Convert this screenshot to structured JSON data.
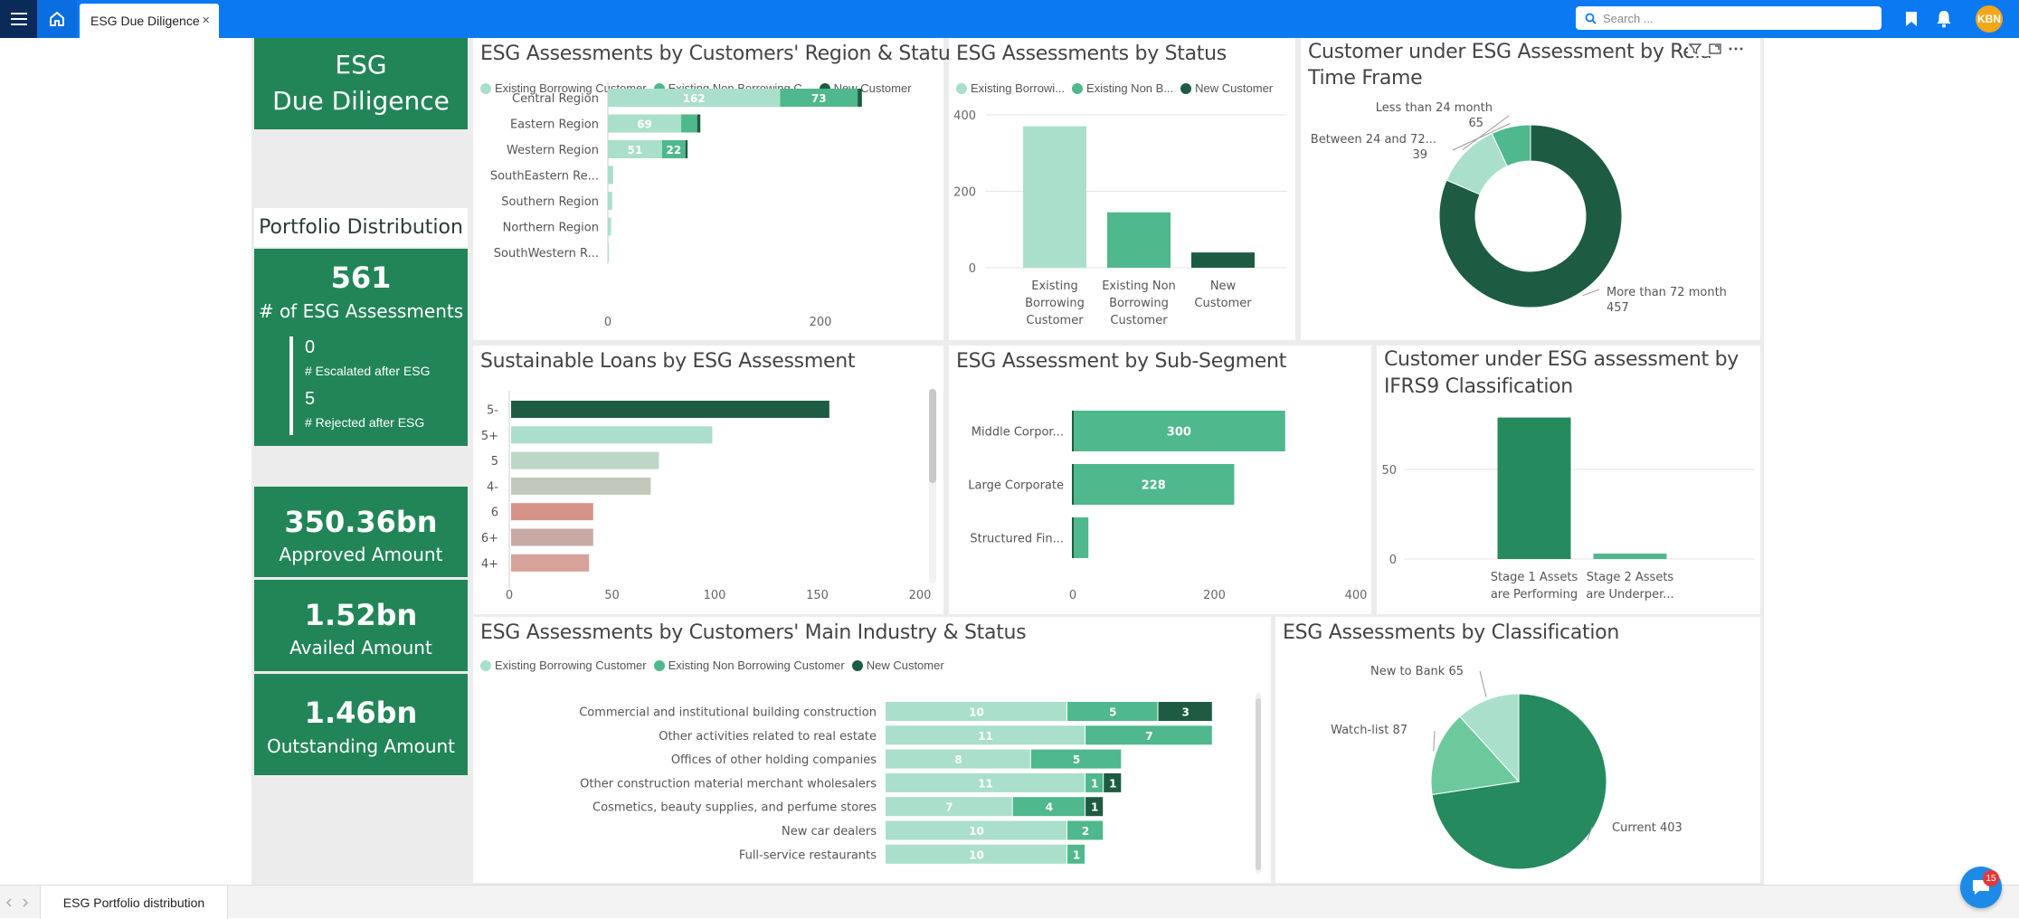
{
  "topbar": {
    "tab_label": "ESG Due Diligence",
    "tab_close": "×",
    "search_placeholder": "Search ...",
    "avatar_initials": "KBN"
  },
  "sidebar": {
    "title_line1": "ESG",
    "title_line2": "Due Diligence",
    "portfolio_heading": "Portfolio Distribution",
    "assessments_count": "561",
    "assessments_label": "# of  ESG Assessments",
    "escalated_count": "0",
    "escalated_label": "# Escalated after ESG",
    "rejected_count": "5",
    "rejected_label": "# Rejected after ESG",
    "approved_amount": "350.36bn",
    "approved_label": "Approved Amount",
    "availed_amount": "1.52bn",
    "availed_label": "Availed Amount",
    "outstanding_amount": "1.46bn",
    "outstanding_label": "Outstanding Amount"
  },
  "legend3": {
    "existing_borrowing": "Existing Borrowing Customer",
    "existing_non_borrowing": "Existing Non Borrowing Customer",
    "existing_non_borrowing_short": "Existing Non Borrowing C...",
    "new_customer": "New Customer",
    "existing_borrowing_trunc": "Existing Borrowi...",
    "existing_non_borrowing_trunc": "Existing Non B..."
  },
  "colors": {
    "light": "#a9dfcb",
    "mid": "#4fb88d",
    "dark": "#1d5c43",
    "kpi_green": "#228558",
    "brand_blue": "#0b79f2"
  },
  "bottombar": {
    "page_tab": "ESG Portfolio distribution",
    "chat_badge": "15"
  },
  "chart_data": [
    {
      "id": "region_status",
      "type": "bar",
      "orientation": "horizontal-stacked",
      "title": "ESG Assessments by Customers' Region & Status",
      "categories": [
        "Central Region",
        "Eastern Region",
        "Western Region",
        "SouthEastern Re...",
        "Southern Region",
        "Northern Region",
        "SouthWestern R..."
      ],
      "series": [
        {
          "name": "Existing Borrowing Customer",
          "values": [
            162,
            69,
            51,
            5,
            4,
            3,
            1
          ]
        },
        {
          "name": "Existing Non Borrowing Customer",
          "values": [
            73,
            15,
            22,
            0,
            0,
            0,
            0
          ]
        },
        {
          "name": "New Customer",
          "values": [
            4,
            3,
            2,
            0,
            0,
            0,
            0
          ]
        }
      ],
      "data_labels": [
        [
          "162",
          "73",
          ""
        ],
        [
          "69",
          "",
          ""
        ],
        [
          "51",
          "22",
          ""
        ],
        [
          "",
          "",
          ""
        ],
        [
          "",
          "",
          ""
        ],
        [
          "",
          "",
          ""
        ],
        [
          "",
          "",
          ""
        ]
      ],
      "xlim": [
        0,
        320
      ],
      "xticks": [
        "0",
        "200"
      ]
    },
    {
      "id": "status",
      "type": "bar",
      "title": "ESG Assessments by Status",
      "categories": [
        "Existing Borrowing Customer",
        "Existing Non Borrowing Customer",
        "New Customer"
      ],
      "category_lines": [
        [
          "Existing",
          "Borrowing",
          "Customer"
        ],
        [
          "Existing Non",
          "Borrowing",
          "Customer"
        ],
        [
          "New",
          "Customer"
        ]
      ],
      "values": [
        370,
        145,
        40
      ],
      "ylim": [
        0,
        400
      ],
      "yticks": [
        "400",
        "200",
        "0"
      ]
    },
    {
      "id": "relationship_time",
      "type": "pie",
      "donut": true,
      "title_line1": "Customer under ESG Assessment by Rela",
      "title_line2": "Time Frame",
      "slices": [
        {
          "label": "More than 72 month",
          "value": 457
        },
        {
          "label": "Less than 24 month",
          "value": 65
        },
        {
          "label": "Between 24 and 72...",
          "value": 39
        }
      ]
    },
    {
      "id": "sustainable_loans",
      "type": "bar",
      "orientation": "horizontal",
      "title": "Sustainable Loans by ESG Assessment",
      "categories": [
        "5-",
        "5+",
        "5",
        "4-",
        "6",
        "6+",
        "4+"
      ],
      "values": [
        155,
        98,
        72,
        68,
        40,
        40,
        38
      ],
      "colors": [
        "#1d5c43",
        "#a9dfcb",
        "#bcd7c6",
        "#c3c8bd",
        "#d6938a",
        "#c6aaa3",
        "#d6a29a"
      ],
      "xlim": [
        0,
        200
      ],
      "xticks": [
        "0",
        "50",
        "100",
        "150",
        "200"
      ]
    },
    {
      "id": "sub_segment",
      "type": "bar",
      "orientation": "horizontal",
      "title": "ESG Assessment by Sub-Segment",
      "categories": [
        "Middle Corpor...",
        "Large Corporate",
        "Structured Fin..."
      ],
      "values": [
        300,
        228,
        22
      ],
      "data_labels": [
        "300",
        "228",
        ""
      ],
      "xlim": [
        0,
        400
      ],
      "xticks": [
        "0",
        "200",
        "400"
      ]
    },
    {
      "id": "ifrs9",
      "type": "bar",
      "title_line1": "Customer under ESG assessment by",
      "title_line2": "IFRS9 Classification",
      "categories": [
        "Stage 1 Assets are Performing",
        "Stage 2 Assets are Underper..."
      ],
      "category_lines": [
        [
          "Stage 1 Assets",
          "are Performing"
        ],
        [
          "Stage 2 Assets",
          "are Underper..."
        ]
      ],
      "values": [
        79,
        3
      ],
      "ylim": [
        0,
        100
      ],
      "yticks": [
        "50",
        "0"
      ]
    },
    {
      "id": "industry_status",
      "type": "bar",
      "orientation": "horizontal-stacked",
      "title": "ESG Assessments by Customers' Main Industry & Status",
      "categories": [
        "Commercial and institutional building construction",
        "Other activities related to real estate",
        "Offices of other holding companies",
        "Other construction material merchant wholesalers",
        "Cosmetics, beauty supplies, and perfume stores",
        "New car dealers",
        "Full-service restaurants"
      ],
      "series": [
        {
          "name": "Existing Borrowing Customer",
          "values": [
            10,
            11,
            8,
            11,
            7,
            10,
            10
          ]
        },
        {
          "name": "Existing Non Borrowing Customer",
          "values": [
            5,
            7,
            5,
            1,
            4,
            2,
            1
          ]
        },
        {
          "name": "New Customer",
          "values": [
            3,
            0,
            0,
            1,
            1,
            0,
            0
          ]
        }
      ],
      "xlim": [
        0,
        18
      ]
    },
    {
      "id": "classification",
      "type": "pie",
      "title": "ESG Assessments by Classification",
      "slices": [
        {
          "label": "Current 403",
          "value": 403
        },
        {
          "label": "Watch-list 87",
          "value": 87
        },
        {
          "label": "New to Bank 65",
          "value": 65
        }
      ]
    }
  ]
}
